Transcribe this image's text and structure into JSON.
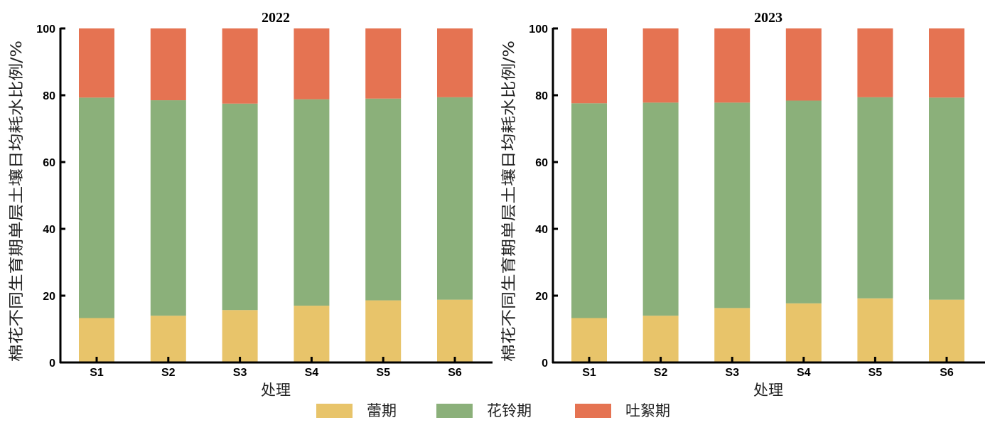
{
  "chart_data": [
    {
      "type": "bar",
      "stacked": true,
      "title": "2022",
      "xlabel": "处理",
      "ylabel": "棉花不同生育期单层土壤日均耗水比例/%",
      "categories": [
        "S1",
        "S2",
        "S3",
        "S4",
        "S5",
        "S6"
      ],
      "ylim": [
        0,
        100
      ],
      "yticks": [
        0,
        20,
        40,
        60,
        80,
        100
      ],
      "series": [
        {
          "name": "蕾期",
          "values": [
            13.3,
            14.0,
            15.7,
            17.0,
            18.6,
            18.8
          ]
        },
        {
          "name": "花铃期",
          "values": [
            66.0,
            64.5,
            61.8,
            61.8,
            60.4,
            60.6
          ]
        },
        {
          "name": "吐絮期",
          "values": [
            20.7,
            21.5,
            22.5,
            21.2,
            21.0,
            20.6
          ]
        }
      ]
    },
    {
      "type": "bar",
      "stacked": true,
      "title": "2023",
      "xlabel": "处理",
      "ylabel": "棉花不同生育期单层土壤日均耗水比例/%",
      "categories": [
        "S1",
        "S2",
        "S3",
        "S4",
        "S5",
        "S6"
      ],
      "ylim": [
        0,
        100
      ],
      "yticks": [
        0,
        20,
        40,
        60,
        80,
        100
      ],
      "series": [
        {
          "name": "蕾期",
          "values": [
            13.3,
            14.0,
            16.3,
            17.7,
            19.2,
            18.8
          ]
        },
        {
          "name": "花铃期",
          "values": [
            64.3,
            63.8,
            61.5,
            60.7,
            60.2,
            60.5
          ]
        },
        {
          "name": "吐絮期",
          "values": [
            22.4,
            22.2,
            22.2,
            21.6,
            20.6,
            20.7
          ]
        }
      ]
    }
  ],
  "legend": {
    "position": "bottom-center",
    "items": [
      {
        "label": "蕾期",
        "color": "#E8C46A"
      },
      {
        "label": "花铃期",
        "color": "#8BB07A"
      },
      {
        "label": "吐絮期",
        "color": "#E57352"
      }
    ]
  }
}
